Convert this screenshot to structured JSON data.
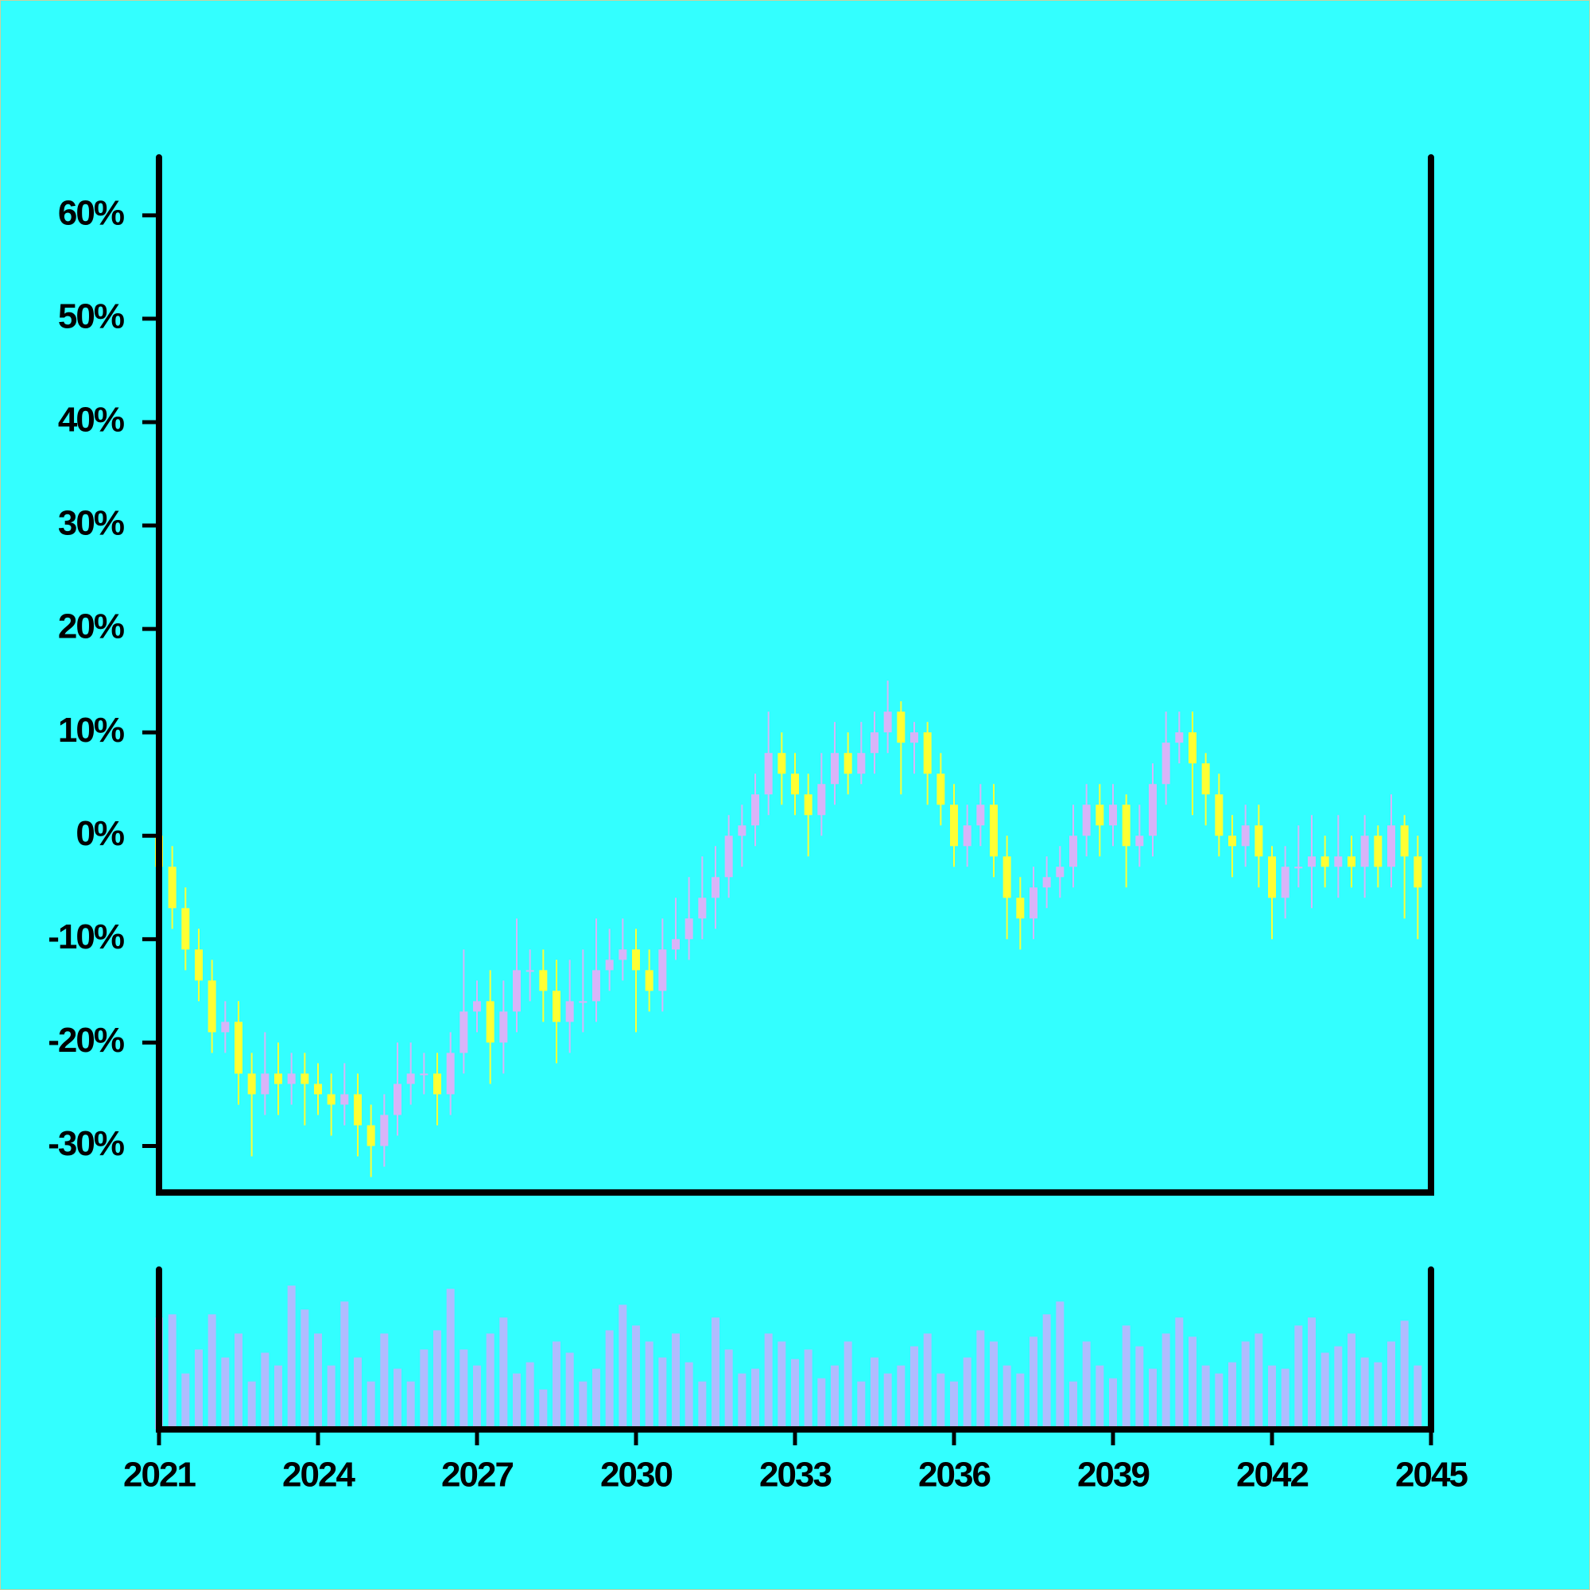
{
  "chart_data": {
    "type": "candlestick",
    "x": [
      2021,
      2021.25,
      2021.5,
      2021.75,
      2022,
      2022.25,
      2022.5,
      2022.75,
      2023,
      2023.25,
      2023.5,
      2023.75,
      2024,
      2024.25,
      2024.5,
      2024.75,
      2025,
      2025.25,
      2025.5,
      2025.75,
      2026,
      2026.25,
      2026.5,
      2026.75,
      2027,
      2027.25,
      2027.5,
      2027.75,
      2028,
      2028.25,
      2028.5,
      2028.75,
      2029,
      2029.25,
      2029.5,
      2029.75,
      2030,
      2030.25,
      2030.5,
      2030.75,
      2031,
      2031.25,
      2031.5,
      2031.75,
      2032,
      2032.25,
      2032.5,
      2032.75,
      2033,
      2033.25,
      2033.5,
      2033.75,
      2034,
      2034.25,
      2034.5,
      2034.75,
      2035,
      2035.25,
      2035.5,
      2035.75,
      2036,
      2036.25,
      2036.5,
      2036.75,
      2037,
      2037.25,
      2037.5,
      2037.75,
      2038,
      2038.25,
      2038.5,
      2038.75,
      2039,
      2039.25,
      2039.5,
      2039.75,
      2040,
      2040.25,
      2040.5,
      2040.75,
      2041,
      2041.25,
      2041.5,
      2041.75,
      2042,
      2042.25,
      2042.5,
      2042.75,
      2043,
      2043.25,
      2043.5,
      2043.75,
      2044,
      2044.25,
      2044.5,
      2044.75
    ],
    "open": [
      0,
      -3,
      -7,
      -11,
      -14,
      -19,
      -18,
      -23,
      -25,
      -23,
      -24,
      -23,
      -24,
      -25,
      -26,
      -25,
      -28,
      -30,
      -27,
      -24,
      -23,
      -23,
      -25,
      -21,
      -17,
      -16,
      -20,
      -17,
      -13,
      -13,
      -15,
      -18,
      -16,
      -16,
      -13,
      -12,
      -11,
      -13,
      -15,
      -11,
      -10,
      -8,
      -6,
      -4,
      0,
      1,
      4,
      8,
      6,
      4,
      2,
      5,
      8,
      6,
      8,
      10,
      12,
      9,
      10,
      6,
      3,
      -1,
      1,
      3,
      -2,
      -6,
      -8,
      -5,
      -4,
      -3,
      0,
      3,
      1,
      3,
      -1,
      0,
      5,
      9,
      10,
      7,
      4,
      0,
      -1,
      1,
      -2,
      -6,
      -3,
      -3,
      -2,
      -3,
      -2,
      -3,
      0,
      -3,
      1,
      -2
    ],
    "high": [
      2,
      -1,
      -5,
      -9,
      -12,
      -16,
      -16,
      -21,
      -19,
      -20,
      -21,
      -21,
      -22,
      -23,
      -22,
      -23,
      -26,
      -25,
      -20,
      -20,
      -21,
      -21,
      -19,
      -11,
      -14,
      -13,
      -14,
      -8,
      -11,
      -11,
      -12,
      -12,
      -11,
      -8,
      -9,
      -8,
      -9,
      -11,
      -8,
      -6,
      -4,
      -2,
      -1,
      2,
      3,
      6,
      12,
      10,
      8,
      6,
      8,
      11,
      10,
      11,
      12,
      15,
      13,
      11,
      11,
      8,
      5,
      3,
      5,
      5,
      0,
      -4,
      -3,
      -2,
      -1,
      3,
      5,
      5,
      5,
      4,
      3,
      7,
      12,
      12,
      12,
      8,
      6,
      2,
      3,
      3,
      -1,
      -1,
      1,
      2,
      0,
      2,
      0,
      2,
      1,
      4,
      2,
      0
    ],
    "low": [
      -5,
      -9,
      -13,
      -16,
      -21,
      -21,
      -26,
      -31,
      -27,
      -27,
      -26,
      -28,
      -27,
      -29,
      -28,
      -31,
      -33,
      -32,
      -29,
      -26,
      -25,
      -28,
      -27,
      -23,
      -19,
      -24,
      -23,
      -19,
      -16,
      -18,
      -22,
      -21,
      -19,
      -18,
      -15,
      -14,
      -19,
      -17,
      -17,
      -12,
      -12,
      -10,
      -9,
      -6,
      -3,
      -1,
      2,
      3,
      2,
      -2,
      0,
      3,
      4,
      5,
      6,
      8,
      4,
      6,
      3,
      1,
      -3,
      -3,
      -1,
      -4,
      -10,
      -11,
      -10,
      -7,
      -6,
      -5,
      -2,
      -2,
      -1,
      -5,
      -3,
      -2,
      3,
      7,
      2,
      1,
      -2,
      -4,
      -3,
      -5,
      -10,
      -8,
      -5,
      -7,
      -5,
      -6,
      -5,
      -6,
      -5,
      -5,
      -8,
      -10
    ],
    "close": [
      -3,
      -7,
      -11,
      -14,
      -19,
      -18,
      -23,
      -25,
      -23,
      -24,
      -23,
      -24,
      -25,
      -26,
      -25,
      -28,
      -30,
      -27,
      -24,
      -23,
      -23,
      -25,
      -21,
      -17,
      -16,
      -20,
      -17,
      -13,
      -13,
      -15,
      -18,
      -16,
      -16,
      -13,
      -12,
      -11,
      -13,
      -15,
      -11,
      -10,
      -8,
      -6,
      -4,
      0,
      1,
      4,
      8,
      6,
      4,
      2,
      5,
      8,
      6,
      8,
      10,
      12,
      9,
      10,
      6,
      3,
      -1,
      1,
      3,
      -2,
      -6,
      -8,
      -5,
      -4,
      -3,
      0,
      3,
      1,
      3,
      -1,
      0,
      5,
      9,
      10,
      7,
      4,
      0,
      -1,
      1,
      -2,
      -6,
      -3,
      -3,
      -2,
      -3,
      -2,
      -3,
      0,
      -3,
      1,
      -2,
      -5
    ],
    "volume": [
      70,
      72,
      35,
      50,
      72,
      45,
      60,
      30,
      48,
      40,
      90,
      75,
      60,
      40,
      80,
      45,
      30,
      60,
      38,
      30,
      50,
      62,
      88,
      50,
      40,
      60,
      70,
      35,
      42,
      25,
      55,
      48,
      30,
      38,
      62,
      78,
      65,
      55,
      45,
      60,
      42,
      30,
      70,
      50,
      35,
      38,
      60,
      55,
      44,
      50,
      32,
      40,
      55,
      30,
      45,
      35,
      40,
      52,
      60,
      35,
      30,
      45,
      62,
      55,
      40,
      35,
      58,
      72,
      80,
      30,
      55,
      40,
      32,
      65,
      52,
      38,
      60,
      70,
      58,
      40,
      35,
      42,
      55,
      60,
      40,
      38,
      65,
      70,
      48,
      52,
      60,
      45,
      42,
      55,
      68,
      40
    ],
    "up_color": "#d8b4f8",
    "down_color": "#ffff33",
    "volume_color": "#b0bcff",
    "xlim": [
      2021,
      2045
    ],
    "xticks": [
      2021,
      2024,
      2027,
      2030,
      2033,
      2036,
      2039,
      2042,
      2045
    ],
    "ylim": [
      -34.5,
      65.6
    ],
    "yticks": [
      {
        "value": -30,
        "label": "-30%"
      },
      {
        "value": -20,
        "label": "-20%"
      },
      {
        "value": -10,
        "label": "-10%"
      },
      {
        "value": 0,
        "label": "0%"
      },
      {
        "value": 10,
        "label": "10%"
      },
      {
        "value": 20,
        "label": "20%"
      },
      {
        "value": 30,
        "label": "30%"
      },
      {
        "value": 40,
        "label": "40%"
      },
      {
        "value": 50,
        "label": "50%"
      },
      {
        "value": 60,
        "label": "60%"
      }
    ],
    "volume_ylim": [
      0,
      100
    ]
  }
}
